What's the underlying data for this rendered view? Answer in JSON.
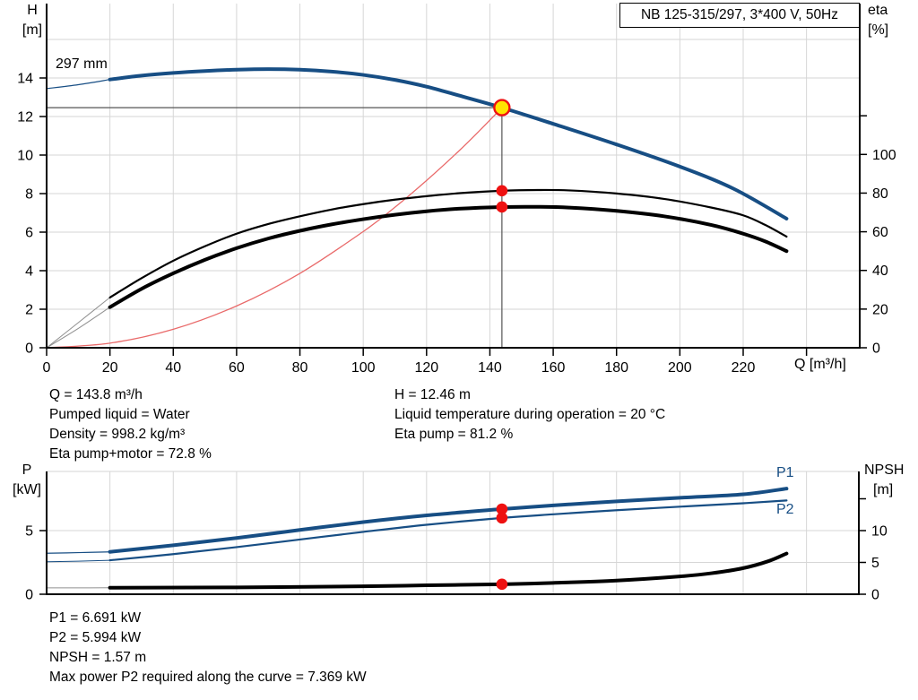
{
  "title_box": "NB 125-315/297, 3*400 V, 50Hz",
  "labels": {
    "h_line1": "H",
    "h_line2": "[m]",
    "eta_line1": "eta",
    "eta_line2": "[%]",
    "q_axis": "Q [m³/h]",
    "impeller": "297 mm",
    "p_line1": "P",
    "p_line2": "[kW]",
    "npsh_line1": "NPSH",
    "npsh_line2": "[m]",
    "p1": "P1",
    "p2": "P2"
  },
  "colors": {
    "blue": "#174e84",
    "black": "#000000",
    "red": "#ee1111",
    "affinity": "#e96a6a",
    "yellow": "#ffe400",
    "grid": "#d6d6d6",
    "crosshair": "#555555",
    "lead_gray": "#909090"
  },
  "info_top_left": [
    "Q = 143.8 m³/h",
    "Pumped liquid = Water",
    "Density = 998.2 kg/m³",
    "Eta pump+motor = 72.8 %"
  ],
  "info_top_right": [
    "H = 12.46 m",
    "Liquid temperature during operation = 20 °C",
    "Eta pump = 81.2 %"
  ],
  "info_bottom": [
    "P1 = 6.691 kW",
    "P2 = 5.994 kW",
    "NPSH = 1.57 m",
    "Max power P2 required along the curve = 7.369 kW"
  ],
  "chart_data": [
    {
      "type": "line",
      "title": "NB 125-315/297, 3*400 V, 50Hz",
      "xlabel": "Q [m³/h]",
      "ylabel_left": "H [m]",
      "ylabel_right": "eta [%]",
      "xlim": [
        0,
        257
      ],
      "ylim_left": [
        0,
        17.7
      ],
      "ylim_right": [
        0,
        176
      ],
      "grid": true,
      "x_ticks": [
        0,
        20,
        40,
        60,
        80,
        100,
        120,
        140,
        160,
        180,
        200,
        220
      ],
      "x_ticks_minor": [
        240
      ],
      "y_ticks_left": [
        0,
        2,
        4,
        6,
        8,
        10,
        12,
        14
      ],
      "y_ticks_right": [
        0,
        20,
        40,
        60,
        80,
        100
      ],
      "y_ticks_right_minor": [
        120
      ],
      "grid_x": [
        20,
        40,
        60,
        80,
        100,
        120,
        140,
        160,
        180,
        200,
        220,
        240
      ],
      "grid_y_left": [
        2,
        4,
        6,
        8,
        10,
        12,
        14,
        16
      ],
      "duty_point": {
        "Q": 143.8,
        "H": 12.46
      },
      "series": [
        {
          "name": "affinity-parabola",
          "axis": "H",
          "color": "affinity",
          "width": 1.3,
          "points": [
            [
              0,
              0
            ],
            [
              20,
              0.24
            ],
            [
              40,
              0.96
            ],
            [
              60,
              2.17
            ],
            [
              80,
              3.86
            ],
            [
              100,
              6.03
            ],
            [
              110,
              7.29
            ],
            [
              120,
              8.68
            ],
            [
              130,
              10.18
            ],
            [
              137,
              11.31
            ],
            [
              143.8,
              12.46
            ]
          ]
        },
        {
          "name": "head-lead-in",
          "axis": "H",
          "color": "blue",
          "width": 1.2,
          "points": [
            [
              0,
              13.45
            ],
            [
              10,
              13.65
            ],
            [
              20,
              13.92
            ]
          ]
        },
        {
          "name": "head-297mm",
          "axis": "H",
          "color": "blue",
          "width": 4,
          "points": [
            [
              20,
              13.92
            ],
            [
              30,
              14.12
            ],
            [
              40,
              14.26
            ],
            [
              50,
              14.36
            ],
            [
              60,
              14.43
            ],
            [
              70,
              14.46
            ],
            [
              80,
              14.43
            ],
            [
              90,
              14.33
            ],
            [
              100,
              14.16
            ],
            [
              110,
              13.9
            ],
            [
              120,
              13.55
            ],
            [
              130,
              13.1
            ],
            [
              143.8,
              12.46
            ],
            [
              160,
              11.62
            ],
            [
              180,
              10.55
            ],
            [
              200,
              9.4
            ],
            [
              217,
              8.25
            ],
            [
              233.7,
              6.7
            ]
          ]
        },
        {
          "name": "eta-pump-lead-in",
          "axis": "eta",
          "color": "lead_gray",
          "width": 1,
          "points": [
            [
              0,
              0
            ],
            [
              10,
              13
            ],
            [
              20,
              26
            ]
          ]
        },
        {
          "name": "eta-pump",
          "axis": "eta",
          "color": "black",
          "width": 2.2,
          "points": [
            [
              20,
              26
            ],
            [
              30,
              36
            ],
            [
              40,
              45
            ],
            [
              50,
              52.5
            ],
            [
              60,
              59
            ],
            [
              70,
              64
            ],
            [
              80,
              68
            ],
            [
              90,
              71.5
            ],
            [
              100,
              74.3
            ],
            [
              110,
              76.6
            ],
            [
              120,
              78.4
            ],
            [
              130,
              79.9
            ],
            [
              143.8,
              81.2
            ],
            [
              155,
              81.6
            ],
            [
              165,
              81.4
            ],
            [
              180,
              79.8
            ],
            [
              195,
              77
            ],
            [
              210,
              72.5
            ],
            [
              220,
              68.5
            ],
            [
              227,
              63.5
            ],
            [
              233.7,
              57.5
            ]
          ]
        },
        {
          "name": "eta-pump-motor-lead-in",
          "axis": "eta",
          "color": "lead_gray",
          "width": 1,
          "points": [
            [
              0,
              0
            ],
            [
              10,
              10
            ],
            [
              20,
              21
            ]
          ]
        },
        {
          "name": "eta-pump-motor",
          "axis": "eta",
          "color": "black",
          "width": 4,
          "points": [
            [
              20,
              21
            ],
            [
              30,
              30.5
            ],
            [
              40,
              38.5
            ],
            [
              50,
              45.5
            ],
            [
              60,
              51.5
            ],
            [
              70,
              56.5
            ],
            [
              80,
              60.5
            ],
            [
              90,
              63.8
            ],
            [
              100,
              66.5
            ],
            [
              110,
              68.8
            ],
            [
              120,
              70.6
            ],
            [
              130,
              71.9
            ],
            [
              143.8,
              72.8
            ],
            [
              155,
              72.9
            ],
            [
              165,
              72.5
            ],
            [
              180,
              70.8
            ],
            [
              195,
              68
            ],
            [
              210,
              63.5
            ],
            [
              220,
              59
            ],
            [
              227,
              55
            ],
            [
              233.7,
              50
            ]
          ]
        }
      ],
      "markers": [
        {
          "axis": "eta",
          "Q": 143.8,
          "v": 81.2,
          "label": "Eta pump"
        },
        {
          "axis": "eta",
          "Q": 143.8,
          "v": 72.8,
          "label": "Eta pump+motor"
        }
      ]
    },
    {
      "type": "line",
      "title": "",
      "xlabel": "",
      "ylabel_left": "P [kW]",
      "ylabel_right": "NPSH [m]",
      "xlim": [
        0,
        257
      ],
      "ylim_left": [
        0,
        9.6
      ],
      "ylim_right": [
        0,
        19.3
      ],
      "grid": true,
      "y_ticks_left": [
        0,
        5
      ],
      "y_ticks_right": [
        0,
        5,
        10
      ],
      "y_ticks_right_minor": [
        15
      ],
      "grid_x": [
        20,
        40,
        60,
        80,
        100,
        120,
        140,
        160,
        180,
        200,
        220,
        240
      ],
      "grid_y_right": [
        5,
        10
      ],
      "series": [
        {
          "name": "p1-lead-in",
          "axis": "P",
          "color": "blue",
          "width": 1.2,
          "points": [
            [
              0,
              3.22
            ],
            [
              10,
              3.27
            ],
            [
              20,
              3.33
            ]
          ]
        },
        {
          "name": "p1-power",
          "axis": "P",
          "color": "blue",
          "width": 4,
          "points": [
            [
              20,
              3.33
            ],
            [
              40,
              3.85
            ],
            [
              60,
              4.42
            ],
            [
              80,
              5.05
            ],
            [
              100,
              5.67
            ],
            [
              120,
              6.2
            ],
            [
              143.8,
              6.691
            ],
            [
              160,
              6.98
            ],
            [
              180,
              7.3
            ],
            [
              200,
              7.58
            ],
            [
              220,
              7.85
            ],
            [
              233.7,
              8.3
            ]
          ]
        },
        {
          "name": "p2-lead-in",
          "axis": "P",
          "color": "blue",
          "width": 1,
          "points": [
            [
              0,
              2.55
            ],
            [
              10,
              2.6
            ],
            [
              20,
              2.67
            ]
          ]
        },
        {
          "name": "p2-power",
          "axis": "P",
          "color": "blue",
          "width": 2.2,
          "points": [
            [
              20,
              2.67
            ],
            [
              40,
              3.15
            ],
            [
              60,
              3.7
            ],
            [
              80,
              4.3
            ],
            [
              100,
              4.9
            ],
            [
              120,
              5.46
            ],
            [
              143.8,
              5.994
            ],
            [
              160,
              6.28
            ],
            [
              180,
              6.6
            ],
            [
              200,
              6.88
            ],
            [
              220,
              7.15
            ],
            [
              233.7,
              7.37
            ]
          ]
        },
        {
          "name": "npsh-lead-in",
          "axis": "NPSH",
          "color": "lead_gray",
          "width": 1,
          "points": [
            [
              0,
              1.0
            ],
            [
              10,
              1.0
            ],
            [
              20,
              1.02
            ]
          ]
        },
        {
          "name": "npsh-curve",
          "axis": "NPSH",
          "color": "black",
          "width": 4,
          "points": [
            [
              20,
              1.02
            ],
            [
              60,
              1.08
            ],
            [
              100,
              1.25
            ],
            [
              120,
              1.4
            ],
            [
              143.8,
              1.57
            ],
            [
              160,
              1.78
            ],
            [
              180,
              2.15
            ],
            [
              200,
              2.8
            ],
            [
              210,
              3.3
            ],
            [
              220,
              4.1
            ],
            [
              228,
              5.2
            ],
            [
              233.7,
              6.4
            ]
          ]
        }
      ],
      "markers": [
        {
          "axis": "P",
          "Q": 143.8,
          "v": 6.691,
          "label": "P1"
        },
        {
          "axis": "P",
          "Q": 143.8,
          "v": 5.994,
          "label": "P2"
        },
        {
          "axis": "NPSH",
          "Q": 143.8,
          "v": 1.57,
          "label": "NPSH"
        }
      ]
    }
  ]
}
